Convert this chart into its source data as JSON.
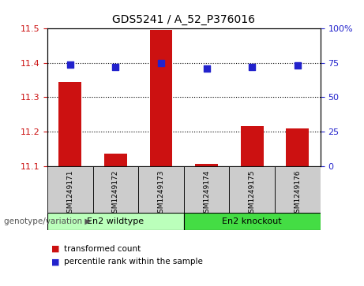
{
  "title": "GDS5241 / A_52_P376016",
  "samples": [
    "GSM1249171",
    "GSM1249172",
    "GSM1249173",
    "GSM1249174",
    "GSM1249175",
    "GSM1249176"
  ],
  "bar_values": [
    11.345,
    11.135,
    11.495,
    11.105,
    11.215,
    11.21
  ],
  "percentile_values": [
    74,
    72,
    75,
    71,
    72,
    73
  ],
  "bar_bottom": 11.1,
  "ylim_left": [
    11.1,
    11.5
  ],
  "ylim_right": [
    0,
    100
  ],
  "yticks_left": [
    11.1,
    11.2,
    11.3,
    11.4,
    11.5
  ],
  "yticks_right": [
    0,
    25,
    50,
    75,
    100
  ],
  "ytick_labels_right": [
    "0",
    "25",
    "50",
    "75",
    "100%"
  ],
  "bar_color": "#cc1111",
  "dot_color": "#2222cc",
  "bar_width": 0.5,
  "group1_label": "En2 wildtype",
  "group2_label": "En2 knockout",
  "group1_indices": [
    0,
    1,
    2
  ],
  "group2_indices": [
    3,
    4,
    5
  ],
  "group1_color": "#bbffbb",
  "group2_color": "#44dd44",
  "genotype_label": "genotype/variation",
  "legend_bar_label": "transformed count",
  "legend_dot_label": "percentile rank within the sample",
  "tick_label_color_left": "#cc1111",
  "tick_label_color_right": "#2222cc",
  "grid_color": "black",
  "sample_bg_color": "#cccccc",
  "dot_marker_size": 30
}
